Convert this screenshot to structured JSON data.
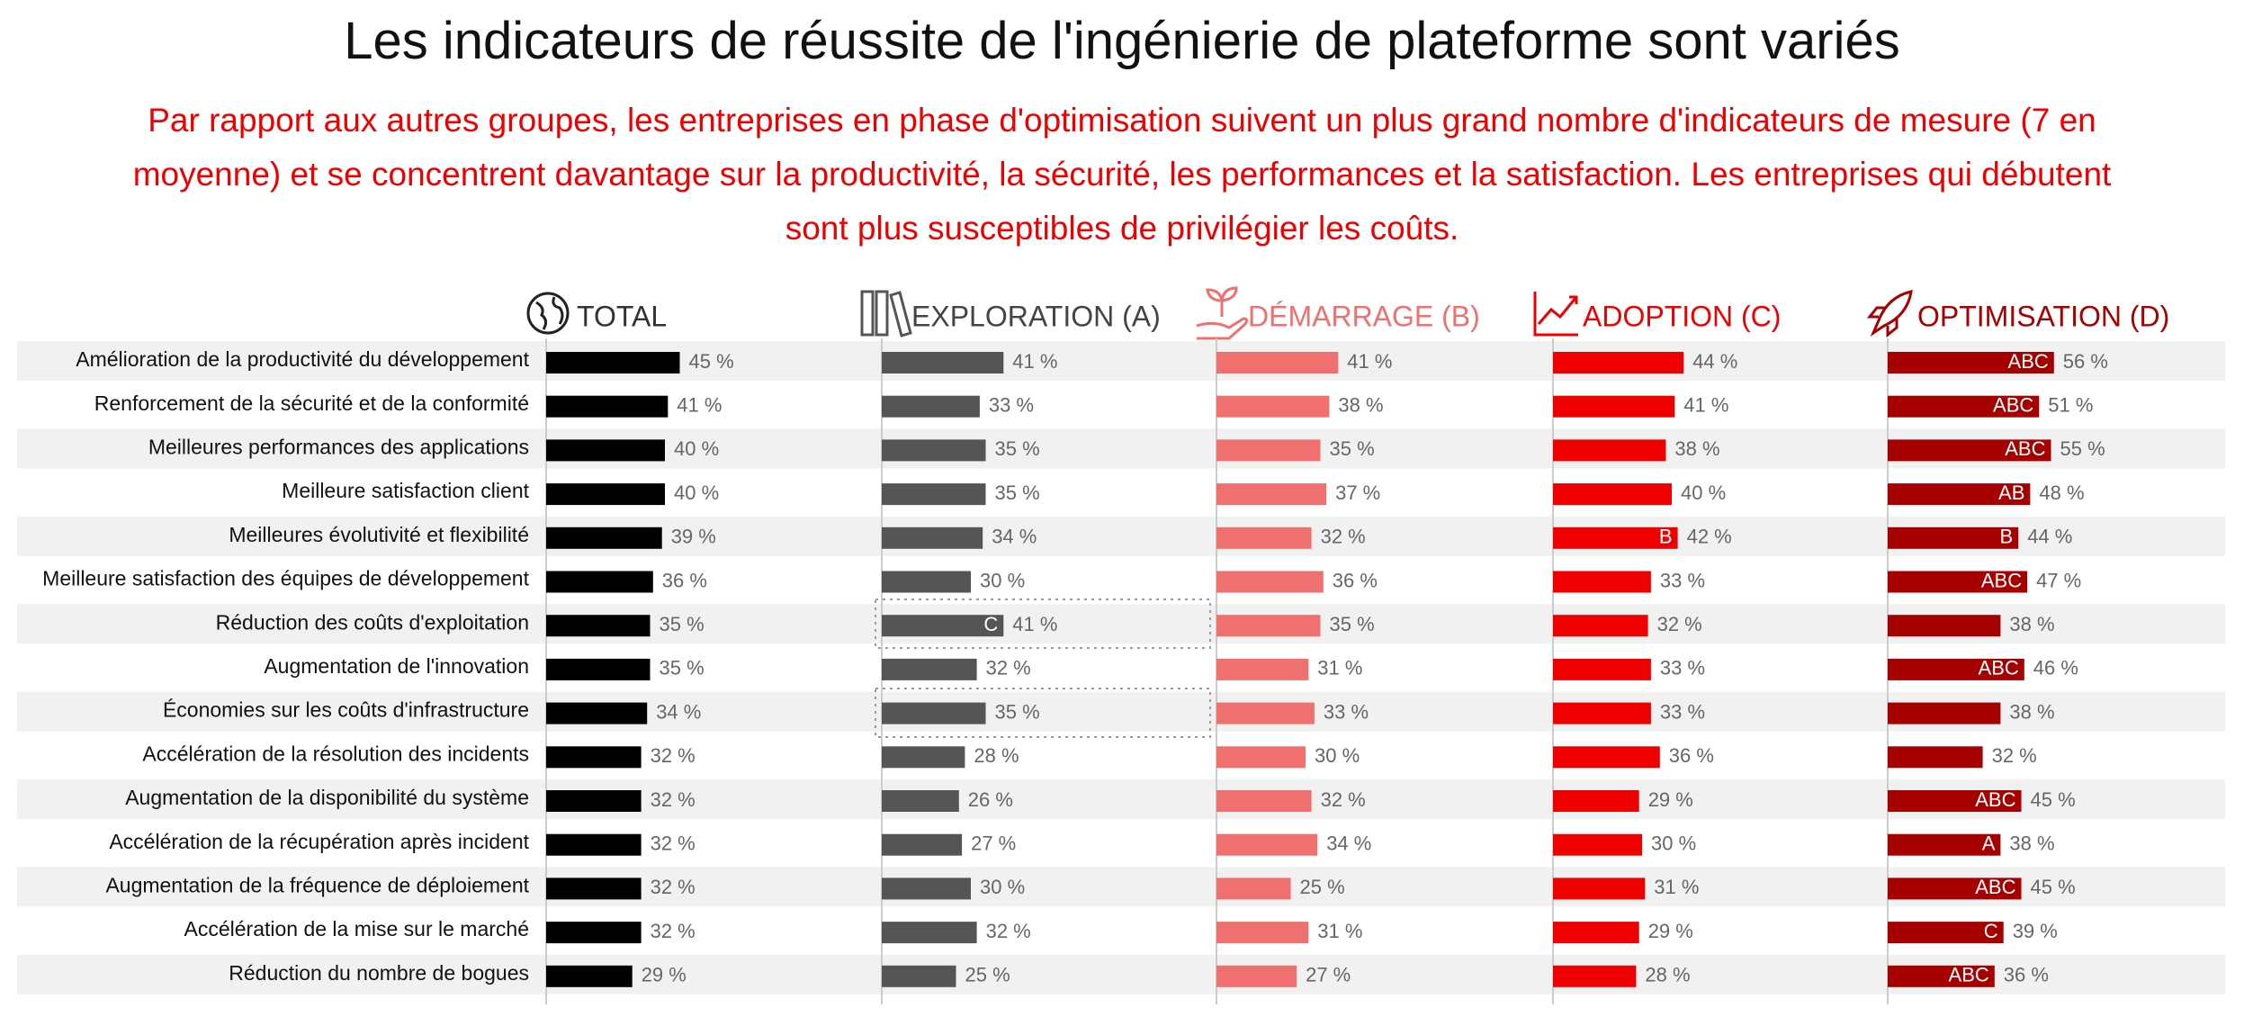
{
  "chart_data": {
    "type": "bar",
    "title": "Les indicateurs de réussite de l'ingénierie de plateforme sont variés",
    "subtitle": "Par rapport aux autres groupes, les entreprises en phase d'optimisation suivent un plus grand nombre d'indicateurs de mesure (7 en moyenne) et se concentrent davantage sur la productivité, la sécurité, les performances et la satisfaction. Les entreprises qui débutent sont plus susceptibles de privilégier les coûts.",
    "categories": [
      "Amélioration de la productivité du développement",
      "Renforcement de la sécurité et de la conformité",
      "Meilleures performances des applications",
      "Meilleure satisfaction client",
      "Meilleures évolutivité et flexibilité",
      "Meilleure satisfaction des équipes de développement",
      "Réduction des coûts d'exploitation",
      "Augmentation de l'innovation",
      "Économies sur les coûts d'infrastructure",
      "Accélération de la résolution des incidents",
      "Augmentation de la disponibilité du système",
      "Accélération de la récupération après incident",
      "Augmentation de la fréquence de déploiement",
      "Accélération de la mise sur le marché",
      "Réduction du nombre de bogues"
    ],
    "series": [
      {
        "name": "TOTAL",
        "color": "#000000",
        "header_color": "#333333",
        "values": [
          45,
          41,
          40,
          40,
          39,
          36,
          35,
          35,
          34,
          32,
          32,
          32,
          32,
          32,
          29
        ],
        "value_labels": [
          "45 %",
          "41 %",
          "40 %",
          "40 %",
          "39 %",
          "36 %",
          "35 %",
          "35 %",
          "34 %",
          "32 %",
          "32 %",
          "32 %",
          "32 %",
          "32 %",
          "29 %"
        ],
        "significance": [
          null,
          null,
          null,
          null,
          null,
          null,
          null,
          null,
          null,
          null,
          null,
          null,
          null,
          null,
          null
        ]
      },
      {
        "name": "EXPLORATION (A)",
        "color": "#555555",
        "header_color": "#444444",
        "values": [
          41,
          33,
          35,
          35,
          34,
          30,
          41,
          32,
          35,
          28,
          26,
          27,
          30,
          32,
          25
        ],
        "value_labels": [
          "41 %",
          "33 %",
          "35 %",
          "35 %",
          "34 %",
          "30 %",
          "41 %",
          "32 %",
          "35 %",
          "28 %",
          "26 %",
          "27 %",
          "30 %",
          "32 %",
          "25 %"
        ],
        "significance": [
          null,
          null,
          null,
          null,
          null,
          null,
          "C",
          null,
          null,
          null,
          null,
          null,
          null,
          null,
          null
        ]
      },
      {
        "name": "DÉMARRAGE (B)",
        "color": "#f07070",
        "header_color": "#f07070",
        "values": [
          41,
          38,
          35,
          37,
          32,
          36,
          35,
          31,
          33,
          30,
          32,
          34,
          25,
          31,
          27
        ],
        "value_labels": [
          "41 %",
          "38 %",
          "35 %",
          "37 %",
          "32 %",
          "36 %",
          "35 %",
          "31 %",
          "33 %",
          "30 %",
          "32 %",
          "34 %",
          "25 %",
          "31 %",
          "27 %"
        ],
        "significance": [
          null,
          null,
          null,
          null,
          null,
          null,
          null,
          null,
          null,
          null,
          null,
          null,
          null,
          null,
          null
        ]
      },
      {
        "name": "ADOPTION (C)",
        "color": "#ee0000",
        "header_color": "#ee0000",
        "values": [
          44,
          41,
          38,
          40,
          42,
          33,
          32,
          33,
          33,
          36,
          29,
          30,
          31,
          29,
          28
        ],
        "value_labels": [
          "44 %",
          "41 %",
          "38 %",
          "40 %",
          "42 %",
          "33 %",
          "32 %",
          "33 %",
          "33 %",
          "36 %",
          "29 %",
          "30 %",
          "31 %",
          "29 %",
          "28 %"
        ],
        "significance": [
          null,
          null,
          null,
          null,
          "B",
          null,
          null,
          null,
          null,
          null,
          null,
          null,
          null,
          null,
          null
        ]
      },
      {
        "name": "OPTIMISATION (D)",
        "color": "#a60000",
        "header_color": "#a60000",
        "values": [
          56,
          51,
          55,
          48,
          44,
          47,
          38,
          46,
          38,
          32,
          45,
          38,
          45,
          39,
          36
        ],
        "value_labels": [
          "56 %",
          "51 %",
          "55 %",
          "48 %",
          "44 %",
          "47 %",
          "38 %",
          "46 %",
          "38 %",
          "32 %",
          "45 %",
          "38 %",
          "45 %",
          "39 %",
          "36 %"
        ],
        "significance": [
          "ABC",
          "ABC",
          "ABC",
          "AB",
          "B",
          "ABC",
          null,
          "ABC",
          null,
          null,
          "ABC",
          "A",
          "ABC",
          "C",
          "ABC"
        ]
      }
    ]
  }
}
